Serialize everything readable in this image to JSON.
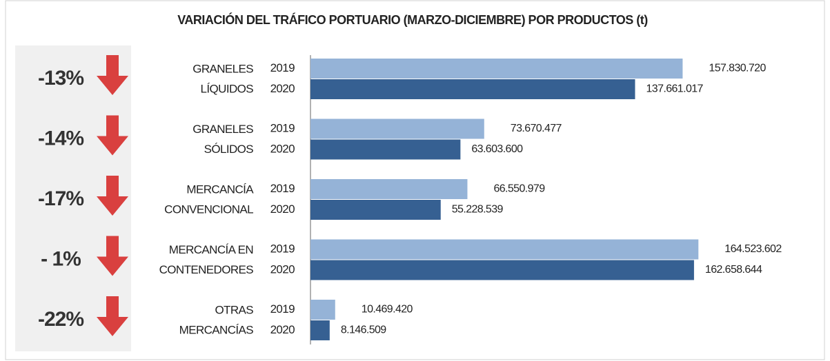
{
  "chart_data": {
    "type": "bar",
    "title": "VARIACIÓN DEL TRÁFICO PORTUARIO (MARZO-DICIEMBRE) POR PRODUCTOS (t)",
    "categories": [
      [
        "GRANELES",
        "LÍQUIDOS"
      ],
      [
        "GRANELES",
        "SÓLIDOS"
      ],
      [
        "MERCANCÍA",
        "CONVENCIONAL"
      ],
      [
        "MERCANCÍA EN",
        "CONTENEDORES"
      ],
      [
        "OTRAS",
        "MERCANCÍAS"
      ]
    ],
    "annotations": [
      "-13%",
      "-14%",
      "-17%",
      "- 1%",
      "-22%"
    ],
    "series": [
      {
        "name": "2019",
        "color": "#95b3d7",
        "values": [
          157830720,
          73670477,
          66550979,
          164523602,
          10469420
        ],
        "value_labels": [
          "157.830.720",
          "73.670.477",
          "66.550.979",
          "164.523.602",
          "10.469.420"
        ]
      },
      {
        "name": "2020",
        "color": "#366092",
        "values": [
          137661017,
          63603600,
          55228539,
          162658644,
          8146509
        ],
        "value_labels": [
          "137.661.017",
          "63.603.600",
          "55.228.539",
          "162.658.644",
          "8.146.509"
        ]
      }
    ],
    "xlim": [
      0,
      170000000
    ]
  }
}
